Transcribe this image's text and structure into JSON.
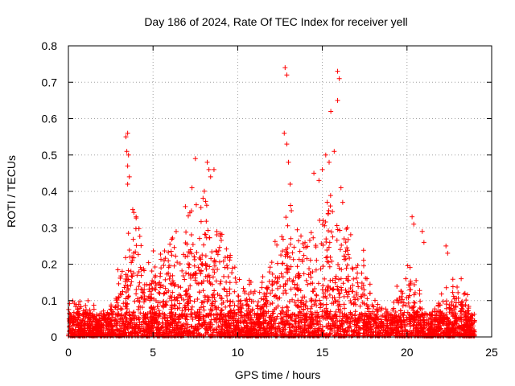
{
  "chart_data": {
    "type": "scatter",
    "title": "Day 186 of 2024, Rate Of TEC Index for receiver yell",
    "xlabel": "GPS time / hours",
    "ylabel": "ROTI / TECUs",
    "xlim": [
      0,
      25
    ],
    "ylim": [
      0,
      0.8
    ],
    "x_ticks": [
      0,
      5,
      10,
      15,
      20,
      25
    ],
    "x_tick_labels": [
      "0",
      "5",
      "10",
      "15",
      "20",
      "25"
    ],
    "y_ticks": [
      0,
      0.1,
      0.2,
      0.3,
      0.4,
      0.5,
      0.6,
      0.7,
      0.8
    ],
    "y_tick_labels": [
      "0",
      "0.1",
      "0.2",
      "0.3",
      "0.4",
      "0.5",
      "0.6",
      "0.7",
      "0.8"
    ],
    "grid": true,
    "marker": "+",
    "series_color": "#ff0000",
    "series": [
      {
        "name": "ROTI",
        "profile_note": "envelope of the dense point cloud: [hour, typical upper value]",
        "envelope": [
          [
            0.0,
            0.08
          ],
          [
            0.5,
            0.1
          ],
          [
            1.0,
            0.1
          ],
          [
            1.5,
            0.07
          ],
          [
            2.0,
            0.06
          ],
          [
            2.5,
            0.08
          ],
          [
            3.0,
            0.17
          ],
          [
            3.5,
            0.25
          ],
          [
            4.0,
            0.3
          ],
          [
            4.5,
            0.22
          ],
          [
            5.0,
            0.2
          ],
          [
            5.5,
            0.22
          ],
          [
            6.0,
            0.24
          ],
          [
            6.5,
            0.25
          ],
          [
            7.0,
            0.3
          ],
          [
            7.5,
            0.33
          ],
          [
            8.0,
            0.35
          ],
          [
            8.5,
            0.32
          ],
          [
            9.0,
            0.25
          ],
          [
            9.5,
            0.22
          ],
          [
            10.0,
            0.15
          ],
          [
            10.5,
            0.14
          ],
          [
            11.0,
            0.12
          ],
          [
            11.5,
            0.16
          ],
          [
            12.0,
            0.22
          ],
          [
            12.5,
            0.3
          ],
          [
            13.0,
            0.33
          ],
          [
            13.5,
            0.3
          ],
          [
            14.0,
            0.28
          ],
          [
            14.5,
            0.3
          ],
          [
            15.0,
            0.32
          ],
          [
            15.5,
            0.33
          ],
          [
            16.0,
            0.32
          ],
          [
            16.5,
            0.28
          ],
          [
            17.0,
            0.2
          ],
          [
            17.5,
            0.2
          ],
          [
            18.0,
            0.12
          ],
          [
            18.5,
            0.08
          ],
          [
            19.0,
            0.09
          ],
          [
            19.5,
            0.12
          ],
          [
            20.0,
            0.18
          ],
          [
            20.5,
            0.16
          ],
          [
            21.0,
            0.07
          ],
          [
            21.5,
            0.06
          ],
          [
            22.0,
            0.1
          ],
          [
            22.5,
            0.14
          ],
          [
            23.0,
            0.12
          ],
          [
            23.5,
            0.12
          ],
          [
            24.0,
            0.05
          ]
        ],
        "outliers": [
          [
            3.4,
            0.55
          ],
          [
            3.5,
            0.56
          ],
          [
            3.45,
            0.51
          ],
          [
            3.55,
            0.5
          ],
          [
            3.5,
            0.47
          ],
          [
            3.6,
            0.44
          ],
          [
            3.5,
            0.42
          ],
          [
            3.8,
            0.35
          ],
          [
            4.0,
            0.33
          ],
          [
            7.3,
            0.41
          ],
          [
            7.5,
            0.49
          ],
          [
            8.2,
            0.48
          ],
          [
            8.3,
            0.46
          ],
          [
            8.6,
            0.46
          ],
          [
            8.4,
            0.44
          ],
          [
            12.8,
            0.74
          ],
          [
            12.9,
            0.72
          ],
          [
            12.75,
            0.56
          ],
          [
            12.9,
            0.53
          ],
          [
            13.0,
            0.48
          ],
          [
            13.1,
            0.42
          ],
          [
            14.5,
            0.45
          ],
          [
            14.8,
            0.43
          ],
          [
            15.0,
            0.46
          ],
          [
            15.2,
            0.5
          ],
          [
            15.4,
            0.48
          ],
          [
            15.5,
            0.62
          ],
          [
            15.7,
            0.51
          ],
          [
            15.9,
            0.73
          ],
          [
            16.0,
            0.71
          ],
          [
            15.9,
            0.65
          ],
          [
            16.1,
            0.41
          ],
          [
            16.2,
            0.37
          ],
          [
            20.3,
            0.33
          ],
          [
            20.4,
            0.31
          ],
          [
            20.9,
            0.29
          ],
          [
            21.0,
            0.26
          ],
          [
            22.3,
            0.25
          ],
          [
            22.4,
            0.23
          ],
          [
            23.2,
            0.16
          ]
        ]
      }
    ]
  }
}
